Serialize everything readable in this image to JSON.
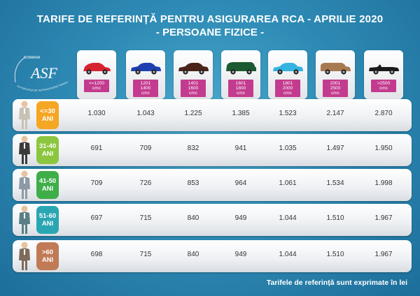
{
  "title_line1": "TARIFE DE REFERINȚĂ PENTRU ASIGURAREA RCA - APRILIE 2020",
  "title_line2": "- PERSOANE FIZICE -",
  "logo": {
    "text_top": "ROMANIA",
    "monogram": "ASF",
    "text_arc": "AUTORITATEA DE SUPRAVEGHERE FINANCIARA"
  },
  "columns": [
    {
      "label": "<=1200\ncmc",
      "car_color": "#d6242f",
      "car_type": "hatch"
    },
    {
      "label": "1201\n1400\ncmc",
      "car_color": "#1f3fb0",
      "car_type": "sedan"
    },
    {
      "label": "1401\n1600\ncmc",
      "car_color": "#4a2418",
      "car_type": "sedan"
    },
    {
      "label": "1601\n1800\ncmc",
      "car_color": "#1b5a32",
      "car_type": "van"
    },
    {
      "label": "1801\n2000\ncmc",
      "car_color": "#35b3e0",
      "car_type": "sedan"
    },
    {
      "label": "2001\n2500\ncmc",
      "car_color": "#a87a52",
      "car_type": "suv"
    },
    {
      "label": ">2500\ncmc",
      "car_color": "#1a1a1a",
      "car_type": "cabrio"
    }
  ],
  "rows": [
    {
      "age": "<=30\nANI",
      "color": "#f5a623",
      "values": [
        "1.030",
        "1.043",
        "1.225",
        "1.385",
        "1.523",
        "2.147",
        "2.870"
      ]
    },
    {
      "age": "31-40\nANI",
      "color": "#8cc63f",
      "values": [
        "691",
        "709",
        "832",
        "941",
        "1.035",
        "1.497",
        "1.950"
      ]
    },
    {
      "age": "41-50\nANI",
      "color": "#3fae49",
      "values": [
        "709",
        "726",
        "853",
        "964",
        "1.061",
        "1.534",
        "1.998"
      ]
    },
    {
      "age": "51-60\nANI",
      "color": "#2aa6b3",
      "values": [
        "697",
        "715",
        "840",
        "949",
        "1.044",
        "1.510",
        "1.967"
      ]
    },
    {
      "age": ">60\nANI",
      "color": "#c07a55",
      "values": [
        "698",
        "715",
        "840",
        "949",
        "1.044",
        "1.510",
        "1.967"
      ]
    }
  ],
  "footer": "Tarifele de referință sunt exprimate în lei"
}
